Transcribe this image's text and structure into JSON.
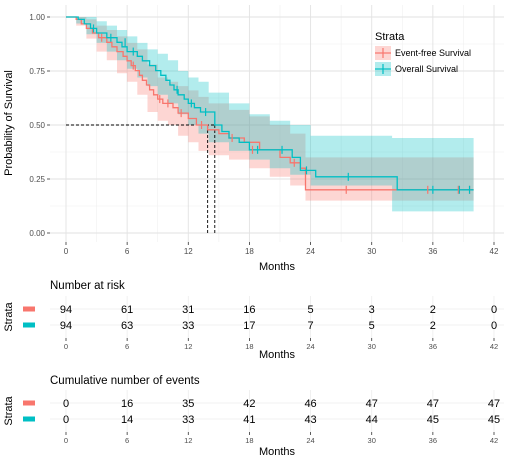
{
  "chart_data": [
    {
      "type": "line",
      "subtype": "kaplan-meier",
      "title": "",
      "xlabel": "Months",
      "ylabel": "Probability of Survival",
      "xlim": [
        0,
        42
      ],
      "ylim": [
        0,
        1
      ],
      "x_ticks": [
        0,
        6,
        12,
        18,
        24,
        30,
        36,
        42
      ],
      "y_ticks": [
        0.0,
        0.25,
        0.5,
        0.75,
        1.0
      ],
      "y_tick_labels": [
        "0.00",
        "0.25",
        "0.50",
        "0.75",
        "1.00"
      ],
      "grid": true,
      "legend": {
        "title": "Strata",
        "placement": "top-right"
      },
      "median_line": {
        "y": 0.5,
        "x_values": [
          13.9,
          14.6
        ]
      },
      "series": [
        {
          "name": "Event-free Survival",
          "color": "#F8766D",
          "steps": [
            [
              0,
              1.0
            ],
            [
              1,
              0.989
            ],
            [
              1.5,
              0.968
            ],
            [
              2,
              0.947
            ],
            [
              2.6,
              0.926
            ],
            [
              3.2,
              0.904
            ],
            [
              4,
              0.883
            ],
            [
              4.5,
              0.862
            ],
            [
              5,
              0.84
            ],
            [
              5.6,
              0.818
            ],
            [
              6,
              0.797
            ],
            [
              6.4,
              0.775
            ],
            [
              6.8,
              0.752
            ],
            [
              7.2,
              0.73
            ],
            [
              7.5,
              0.707
            ],
            [
              7.9,
              0.685
            ],
            [
              8.2,
              0.663
            ],
            [
              8.6,
              0.64
            ],
            [
              9,
              0.62
            ],
            [
              9.5,
              0.6
            ],
            [
              10.5,
              0.58
            ],
            [
              11,
              0.555
            ],
            [
              12,
              0.53
            ],
            [
              12.8,
              0.5
            ],
            [
              13.9,
              0.478
            ],
            [
              15,
              0.46
            ],
            [
              16,
              0.44
            ],
            [
              17.5,
              0.42
            ],
            [
              19,
              0.385
            ],
            [
              21,
              0.35
            ],
            [
              22,
              0.325
            ],
            [
              23,
              0.3
            ],
            [
              23.5,
              0.2
            ],
            [
              40,
              0.2
            ]
          ],
          "censor_marks": [
            [
              3.5,
              0.904
            ],
            [
              6.6,
              0.775
            ],
            [
              9.2,
              0.62
            ],
            [
              10,
              0.6
            ],
            [
              11.3,
              0.555
            ],
            [
              13.3,
              0.5
            ],
            [
              16.3,
              0.44
            ],
            [
              18.3,
              0.385
            ],
            [
              22.4,
              0.325
            ],
            [
              27.5,
              0.2
            ],
            [
              35.5,
              0.2
            ],
            [
              38.5,
              0.2
            ],
            [
              39.6,
              0.2
            ]
          ],
          "ci_upper": [
            [
              0,
              1.0
            ],
            [
              1,
              1.0
            ],
            [
              2,
              0.99
            ],
            [
              3,
              0.96
            ],
            [
              4,
              0.94
            ],
            [
              5,
              0.91
            ],
            [
              6,
              0.88
            ],
            [
              7,
              0.85
            ],
            [
              8,
              0.78
            ],
            [
              9,
              0.72
            ],
            [
              10,
              0.7
            ],
            [
              11,
              0.68
            ],
            [
              12,
              0.66
            ],
            [
              13,
              0.63
            ],
            [
              14,
              0.6
            ],
            [
              16,
              0.57
            ],
            [
              18,
              0.54
            ],
            [
              20,
              0.5
            ],
            [
              22,
              0.46
            ],
            [
              23.5,
              0.35
            ],
            [
              40,
              0.35
            ]
          ],
          "ci_lower": [
            [
              0,
              1.0
            ],
            [
              1,
              0.96
            ],
            [
              2,
              0.9
            ],
            [
              3,
              0.84
            ],
            [
              4,
              0.8
            ],
            [
              5,
              0.74
            ],
            [
              6,
              0.7
            ],
            [
              7,
              0.64
            ],
            [
              8,
              0.56
            ],
            [
              9,
              0.52
            ],
            [
              10,
              0.5
            ],
            [
              11,
              0.45
            ],
            [
              12,
              0.42
            ],
            [
              13,
              0.38
            ],
            [
              14,
              0.36
            ],
            [
              16,
              0.34
            ],
            [
              18,
              0.3
            ],
            [
              20,
              0.26
            ],
            [
              22,
              0.22
            ],
            [
              23.5,
              0.15
            ],
            [
              40,
              0.15
            ]
          ]
        },
        {
          "name": "Overall Survival",
          "color": "#00BFC4",
          "steps": [
            [
              0,
              1.0
            ],
            [
              1.2,
              0.989
            ],
            [
              1.8,
              0.968
            ],
            [
              2.4,
              0.947
            ],
            [
              3,
              0.926
            ],
            [
              4,
              0.904
            ],
            [
              5,
              0.883
            ],
            [
              5.5,
              0.862
            ],
            [
              6,
              0.84
            ],
            [
              7,
              0.818
            ],
            [
              7.5,
              0.797
            ],
            [
              8.2,
              0.775
            ],
            [
              8.8,
              0.752
            ],
            [
              9.3,
              0.73
            ],
            [
              9.8,
              0.707
            ],
            [
              10.2,
              0.685
            ],
            [
              10.6,
              0.663
            ],
            [
              11,
              0.64
            ],
            [
              11.6,
              0.62
            ],
            [
              12,
              0.6
            ],
            [
              12.6,
              0.58
            ],
            [
              13.2,
              0.56
            ],
            [
              14.6,
              0.5
            ],
            [
              15.3,
              0.47
            ],
            [
              16,
              0.44
            ],
            [
              17,
              0.42
            ],
            [
              18,
              0.385
            ],
            [
              20,
              0.385
            ],
            [
              22.2,
              0.35
            ],
            [
              23,
              0.29
            ],
            [
              24.5,
              0.26
            ],
            [
              32.5,
              0.2
            ],
            [
              40,
              0.2
            ]
          ],
          "censor_marks": [
            [
              2.7,
              0.947
            ],
            [
              4.4,
              0.904
            ],
            [
              5.8,
              0.883
            ],
            [
              6.6,
              0.84
            ],
            [
              10.9,
              0.663
            ],
            [
              12.3,
              0.6
            ],
            [
              13.7,
              0.56
            ],
            [
              18.8,
              0.385
            ],
            [
              21.2,
              0.385
            ],
            [
              23.6,
              0.29
            ],
            [
              27.7,
              0.26
            ],
            [
              36,
              0.2
            ],
            [
              38.6,
              0.2
            ],
            [
              39.6,
              0.2
            ]
          ],
          "ci_upper": [
            [
              0,
              1.0
            ],
            [
              1,
              1.0
            ],
            [
              2,
              1.0
            ],
            [
              3,
              0.98
            ],
            [
              4,
              0.96
            ],
            [
              5,
              0.94
            ],
            [
              6,
              0.91
            ],
            [
              7,
              0.88
            ],
            [
              8,
              0.85
            ],
            [
              9,
              0.83
            ],
            [
              10,
              0.8
            ],
            [
              11,
              0.75
            ],
            [
              12,
              0.72
            ],
            [
              13,
              0.7
            ],
            [
              14,
              0.65
            ],
            [
              16,
              0.6
            ],
            [
              18,
              0.55
            ],
            [
              20,
              0.52
            ],
            [
              22,
              0.5
            ],
            [
              24,
              0.45
            ],
            [
              32,
              0.44
            ],
            [
              40,
              0.44
            ]
          ],
          "ci_lower": [
            [
              0,
              1.0
            ],
            [
              1,
              0.97
            ],
            [
              2,
              0.92
            ],
            [
              3,
              0.88
            ],
            [
              4,
              0.84
            ],
            [
              5,
              0.8
            ],
            [
              6,
              0.76
            ],
            [
              7,
              0.72
            ],
            [
              8,
              0.68
            ],
            [
              9,
              0.64
            ],
            [
              10,
              0.6
            ],
            [
              11,
              0.55
            ],
            [
              12,
              0.5
            ],
            [
              13,
              0.46
            ],
            [
              14,
              0.42
            ],
            [
              16,
              0.38
            ],
            [
              18,
              0.34
            ],
            [
              20,
              0.3
            ],
            [
              22,
              0.27
            ],
            [
              24,
              0.22
            ],
            [
              32,
              0.1
            ],
            [
              40,
              0.1
            ]
          ]
        }
      ]
    },
    {
      "type": "table",
      "title": "Number at risk",
      "xlabel": "Months",
      "ylabel": "Strata",
      "x_ticks": [
        0,
        6,
        12,
        18,
        24,
        30,
        36,
        42
      ],
      "series": [
        {
          "name": "Event-free Survival",
          "color": "#F8766D",
          "values": [
            94,
            61,
            31,
            16,
            5,
            3,
            2,
            0
          ]
        },
        {
          "name": "Overall Survival",
          "color": "#00BFC4",
          "values": [
            94,
            63,
            33,
            17,
            7,
            5,
            2,
            0
          ]
        }
      ]
    },
    {
      "type": "table",
      "title": "Cumulative number of events",
      "xlabel": "Months",
      "ylabel": "Strata",
      "x_ticks": [
        0,
        6,
        12,
        18,
        24,
        30,
        36,
        42
      ],
      "series": [
        {
          "name": "Event-free Survival",
          "color": "#F8766D",
          "values": [
            0,
            16,
            35,
            42,
            46,
            47,
            47,
            47
          ]
        },
        {
          "name": "Overall Survival",
          "color": "#00BFC4",
          "values": [
            0,
            14,
            33,
            41,
            43,
            44,
            45,
            45
          ]
        }
      ]
    }
  ]
}
